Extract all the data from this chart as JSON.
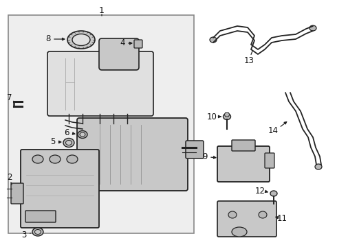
{
  "bg_color": "#ffffff",
  "box_fill": "#eeeeee",
  "box_edge": "#888888",
  "lc": "#222222",
  "tc": "#111111",
  "gray1": "#d0d0d0",
  "gray2": "#b8b8b8",
  "gray3": "#c8c8c8",
  "gray4": "#e0e0e0"
}
